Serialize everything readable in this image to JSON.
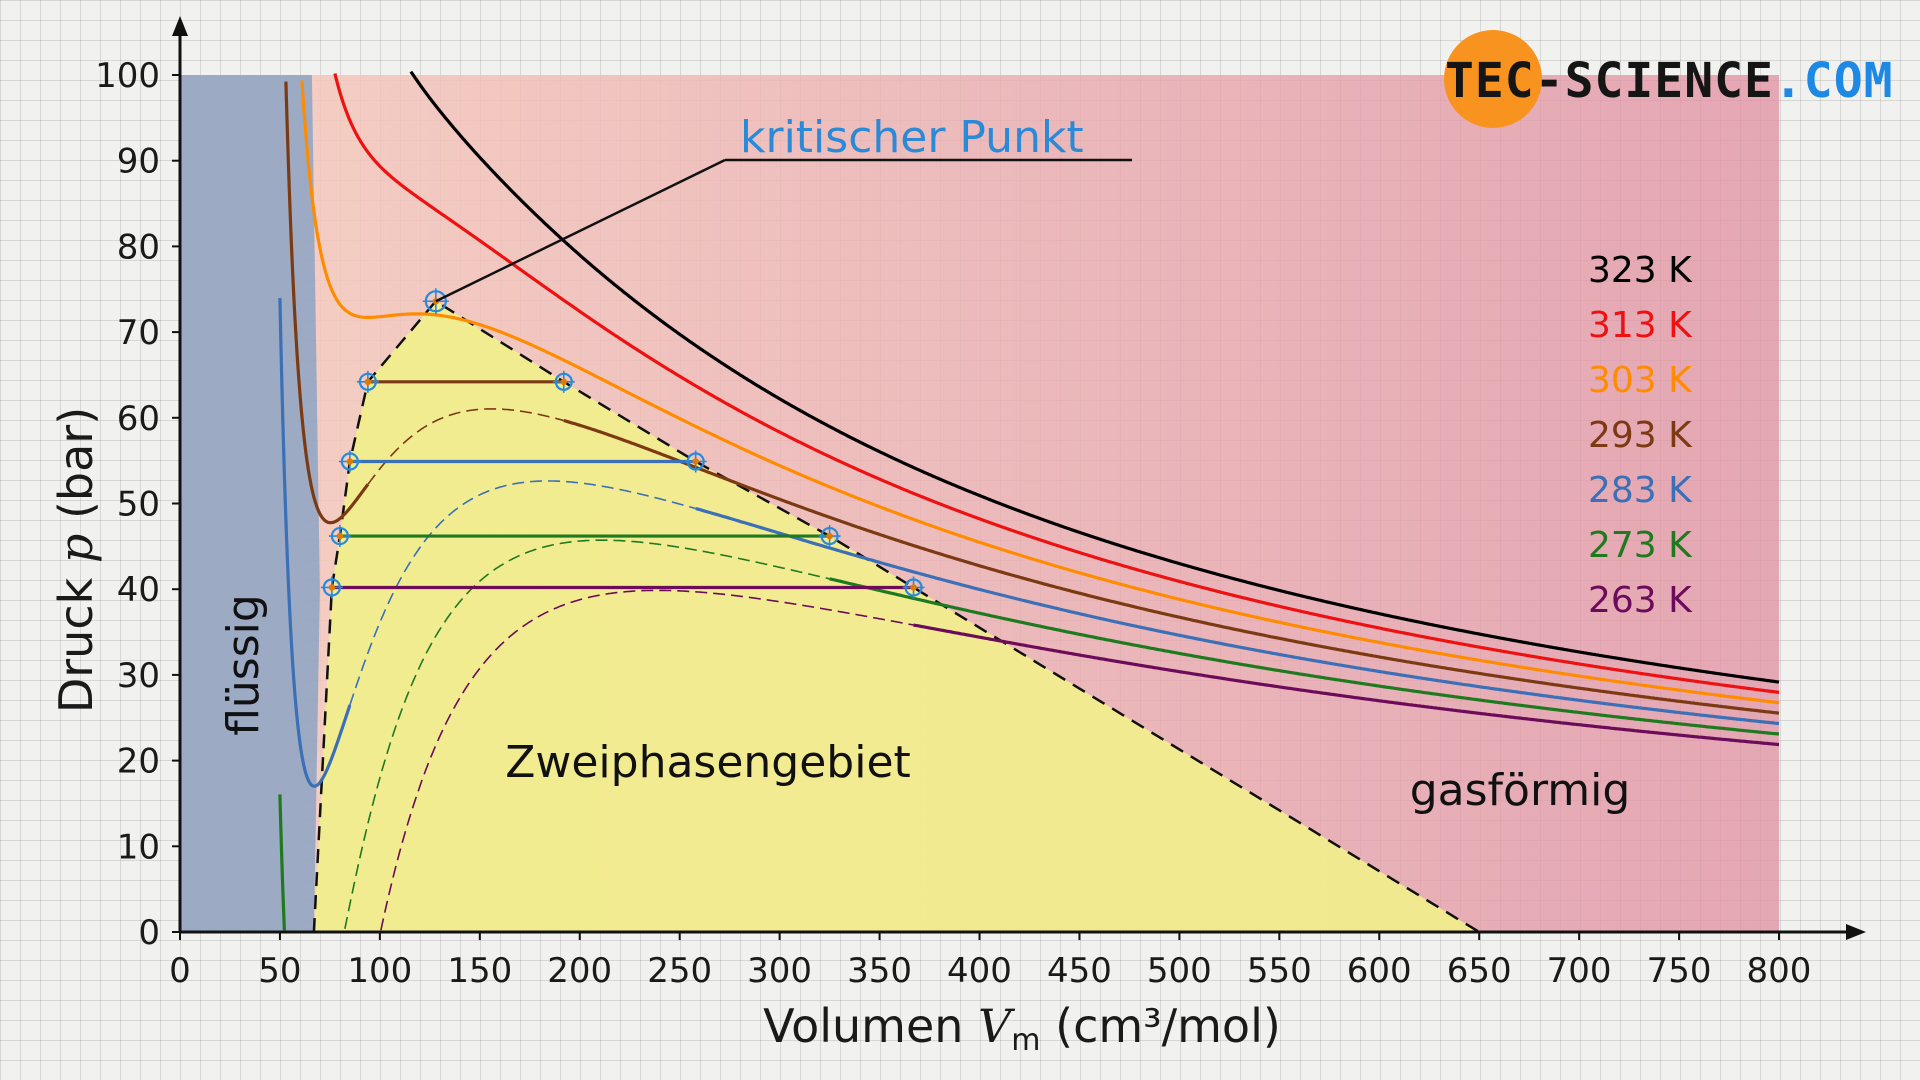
{
  "chart_data": {
    "type": "line",
    "xlabel_main": "Volumen ",
    "xlabel_var": "V",
    "xlabel_sub": "m",
    "xlabel_unit": " (cm³/mol)",
    "ylabel_main": "Druck ",
    "ylabel_var": "p",
    "ylabel_unit": " (bar)",
    "xlim": [
      0,
      800
    ],
    "ylim": [
      0,
      100
    ],
    "x_ticks": [
      0,
      50,
      100,
      150,
      200,
      250,
      300,
      350,
      400,
      450,
      500,
      550,
      600,
      650,
      700,
      750,
      800
    ],
    "y_ticks": [
      0,
      10,
      20,
      30,
      40,
      50,
      60,
      70,
      80,
      90,
      100
    ],
    "regions": {
      "liquid": "flüssig",
      "two_phase": "Zweiphasengebiet",
      "gas": "gasförmig"
    },
    "annotation": "kritischer Punkt",
    "critical_point": {
      "V": 128,
      "p": 73.6
    },
    "series": [
      {
        "name": "323 K",
        "T": 323,
        "color": "#000000"
      },
      {
        "name": "313 K",
        "T": 313,
        "color": "#ee1111"
      },
      {
        "name": "303 K",
        "T": 303,
        "color": "#ff8c00"
      },
      {
        "name": "293 K",
        "T": 293,
        "color": "#7b3a12"
      },
      {
        "name": "283 K",
        "T": 283,
        "color": "#3b6fb6"
      },
      {
        "name": "273 K",
        "T": 273,
        "color": "#1f7a1f"
      },
      {
        "name": "263 K",
        "T": 263,
        "color": "#6b0b5a"
      }
    ],
    "saturation_points": [
      {
        "T": 293,
        "p": 64.2,
        "V_liquid": 94,
        "V_gas": 192
      },
      {
        "T": 283,
        "p": 54.9,
        "V_liquid": 85,
        "V_gas": 258
      },
      {
        "T": 273,
        "p": 46.2,
        "V_liquid": 80,
        "V_gas": 325
      },
      {
        "T": 263,
        "p": 40.2,
        "V_liquid": 76,
        "V_gas": 367
      }
    ]
  },
  "logo": {
    "part1": "TEC-",
    "part2": "SCIENCE",
    "part3": ".COM"
  },
  "colors": {
    "liquid_fill": "#7f9ec4",
    "two_phase_fill": "#f2f08c",
    "gas_fill_left": "#f4c2b4",
    "gas_fill_right": "#e597a8",
    "critical_marker": "#2a8ad8",
    "logo_circle": "#f7931e",
    "logo_blue": "#1e88e5"
  }
}
